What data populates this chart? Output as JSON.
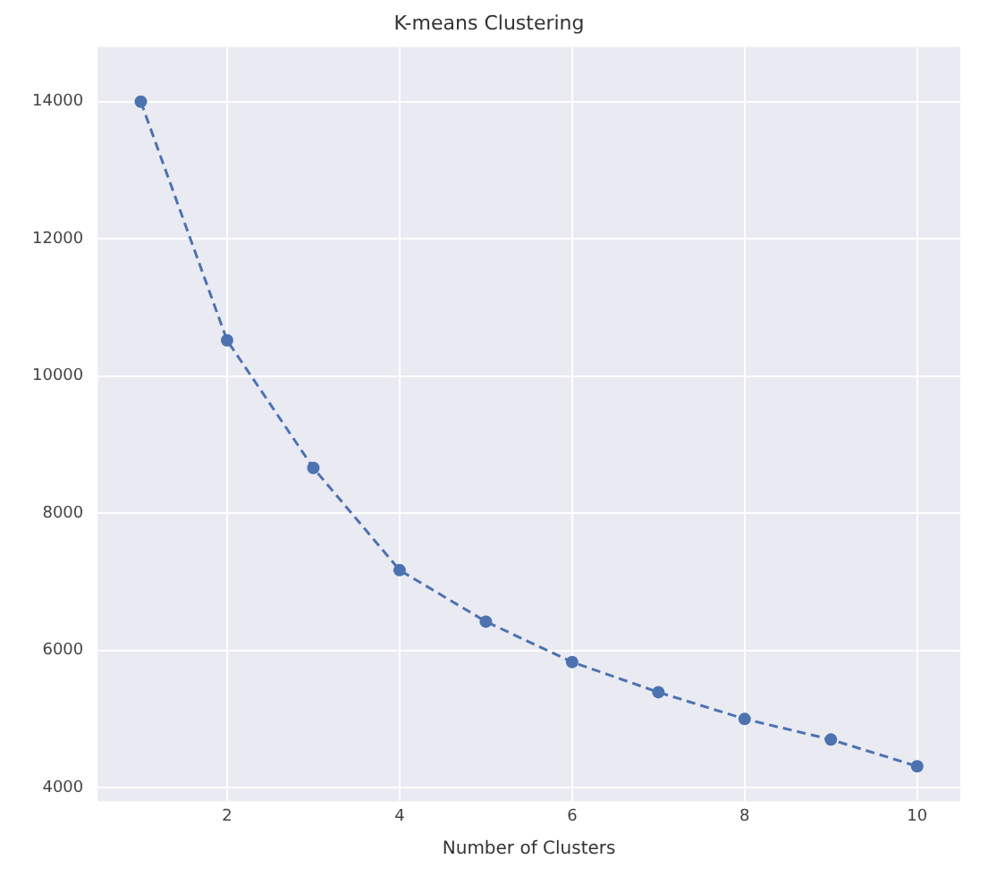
{
  "chart_data": {
    "type": "line",
    "title": "K-means Clustering",
    "xlabel": "Number of Clusters",
    "x": [
      1,
      2,
      3,
      4,
      5,
      6,
      7,
      8,
      9,
      10
    ],
    "series": [
      {
        "color": "#4c72b0",
        "values": [
          14000,
          10520,
          8660,
          7170,
          6420,
          5830,
          5390,
          5000,
          4700,
          4310
        ]
      }
    ],
    "xlim": [
      0.5,
      10.5
    ],
    "xticks": [
      2,
      4,
      6,
      8,
      10
    ],
    "ylim": [
      3800,
      14800
    ],
    "yticks": [
      4000,
      6000,
      8000,
      10000,
      12000,
      14000
    ],
    "grid": true,
    "legend": false,
    "marker": "circle",
    "line_style": "dashed"
  }
}
